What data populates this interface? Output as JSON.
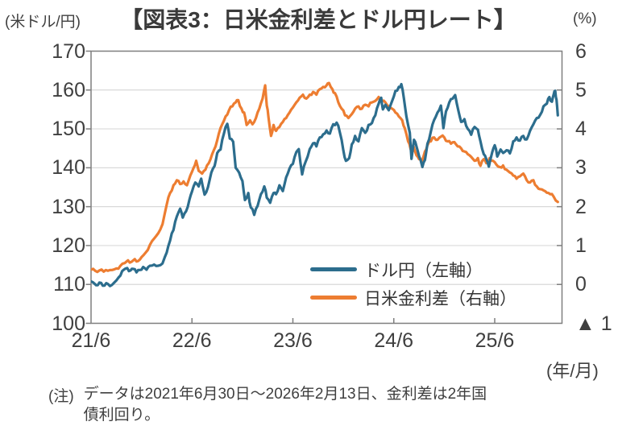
{
  "header": {
    "title": "【図表3：日米金利差とドル円レート】"
  },
  "note": {
    "prefix": "(注)",
    "line1": "データは2021年6月30日～2026年2月13日、金利差は2年国",
    "line2": "債利回り。"
  },
  "chart_data": {
    "type": "line",
    "title": "【図表3：日米金利差とドル円レート】",
    "grid": "horizontal",
    "legend_position": "inside-bottom-right",
    "colors": {
      "usdjpy": "#2c6d8d",
      "rate_diff": "#ed7d31",
      "gridline": "#d9d9d9",
      "axis": "#7f7f7f",
      "text": "#3f3f3f"
    },
    "x_axis": {
      "unit": "(年/月)",
      "ticks": [
        "21/6",
        "22/6",
        "23/6",
        "24/6",
        "25/6"
      ],
      "tick_months": [
        0,
        12,
        24,
        36,
        48
      ],
      "range_months": [
        0,
        56
      ],
      "start": "2021/6/30",
      "end": "2026/2/13"
    },
    "y_left": {
      "unit": "(米ドル/円)",
      "ticks": [
        "170",
        "160",
        "150",
        "140",
        "130",
        "120",
        "110",
        "100"
      ],
      "values": [
        170,
        160,
        150,
        140,
        130,
        120,
        110,
        100
      ],
      "range": [
        100,
        170
      ]
    },
    "y_right": {
      "unit": "(%)",
      "ticks": [
        "6",
        "5",
        "4",
        "3",
        "2",
        "1",
        "0",
        "▲ 1"
      ],
      "values": [
        6,
        5,
        4,
        3,
        2,
        1,
        0,
        -1
      ],
      "range": [
        -1,
        6
      ]
    },
    "series": [
      {
        "name": "ドル円（左軸）",
        "axis": "left",
        "color": "#2c6d8d",
        "points": [
          [
            0,
            110.8
          ],
          [
            0.4,
            110.2
          ],
          [
            0.8,
            109.8
          ],
          [
            1.2,
            110.4
          ],
          [
            1.6,
            109.7
          ],
          [
            2,
            110.1
          ],
          [
            2.5,
            109.9
          ],
          [
            3,
            111.0
          ],
          [
            3.5,
            112.3
          ],
          [
            3.9,
            113.8
          ],
          [
            4.3,
            114.2
          ],
          [
            4.7,
            113.6
          ],
          [
            5,
            114.0
          ],
          [
            5.4,
            113.1
          ],
          [
            5.8,
            113.7
          ],
          [
            6.2,
            114.5
          ],
          [
            6.6,
            113.8
          ],
          [
            7,
            114.8
          ],
          [
            7.5,
            115.1
          ],
          [
            8,
            114.8
          ],
          [
            8.5,
            115.4
          ],
          [
            9,
            118.2
          ],
          [
            9.4,
            121.3
          ],
          [
            9.8,
            124.0
          ],
          [
            10.2,
            127.5
          ],
          [
            10.6,
            129.5
          ],
          [
            10.9,
            127.2
          ],
          [
            11.3,
            128.8
          ],
          [
            11.7,
            131.8
          ],
          [
            12,
            133.9
          ],
          [
            12.4,
            136.2
          ],
          [
            12.8,
            135.2
          ],
          [
            13.1,
            137.2
          ],
          [
            13.5,
            133.1
          ],
          [
            13.9,
            135.0
          ],
          [
            14.3,
            138.8
          ],
          [
            14.7,
            140.5
          ],
          [
            15,
            143.8
          ],
          [
            15.4,
            144.7
          ],
          [
            15.8,
            148.8
          ],
          [
            16.2,
            151.3
          ],
          [
            16.5,
            147.5
          ],
          [
            16.9,
            146.7
          ],
          [
            17.2,
            140.0
          ],
          [
            17.6,
            138.8
          ],
          [
            18,
            136.6
          ],
          [
            18.3,
            131.7
          ],
          [
            18.7,
            133.5
          ],
          [
            19,
            129.8
          ],
          [
            19.4,
            127.9
          ],
          [
            19.8,
            130.2
          ],
          [
            20.2,
            133.2
          ],
          [
            20.6,
            135.2
          ],
          [
            20.9,
            132.3
          ],
          [
            21.3,
            131.0
          ],
          [
            21.7,
            133.5
          ],
          [
            22,
            133.2
          ],
          [
            22.4,
            135.5
          ],
          [
            22.8,
            134.0
          ],
          [
            23.2,
            137.5
          ],
          [
            23.6,
            139.8
          ],
          [
            24,
            141.0
          ],
          [
            24.4,
            144.0
          ],
          [
            24.7,
            144.8
          ],
          [
            25.1,
            138.3
          ],
          [
            25.5,
            141.5
          ],
          [
            26,
            144.8
          ],
          [
            26.4,
            146.3
          ],
          [
            26.8,
            145.5
          ],
          [
            27.2,
            147.8
          ],
          [
            27.6,
            148.6
          ],
          [
            28,
            149.6
          ],
          [
            28.4,
            148.8
          ],
          [
            28.8,
            151.2
          ],
          [
            29.2,
            151.6
          ],
          [
            29.6,
            149.0
          ],
          [
            30,
            144.5
          ],
          [
            30.3,
            141.8
          ],
          [
            30.7,
            142.5
          ],
          [
            31,
            146.0
          ],
          [
            31.4,
            148.2
          ],
          [
            31.8,
            146.8
          ],
          [
            32.2,
            150.2
          ],
          [
            32.6,
            149.0
          ],
          [
            33,
            151.0
          ],
          [
            33.4,
            151.5
          ],
          [
            33.8,
            153.5
          ],
          [
            34.2,
            156.5
          ],
          [
            34.5,
            158.0
          ],
          [
            34.7,
            155.0
          ],
          [
            35,
            156.2
          ],
          [
            35.4,
            154.8
          ],
          [
            35.8,
            157.2
          ],
          [
            36.2,
            159.8
          ],
          [
            36.6,
            160.8
          ],
          [
            36.9,
            161.5
          ],
          [
            37.2,
            157.8
          ],
          [
            37.5,
            153.2
          ],
          [
            37.9,
            149.0
          ],
          [
            38.1,
            142.3
          ],
          [
            38.4,
            147.2
          ],
          [
            38.7,
            145.5
          ],
          [
            39,
            143.0
          ],
          [
            39.4,
            140.2
          ],
          [
            39.7,
            142.0
          ],
          [
            40,
            146.2
          ],
          [
            40.4,
            149.3
          ],
          [
            40.8,
            152.3
          ],
          [
            41.2,
            154.2
          ],
          [
            41.6,
            156.0
          ],
          [
            41.9,
            150.2
          ],
          [
            42.2,
            154.5
          ],
          [
            42.6,
            156.8
          ],
          [
            43,
            157.8
          ],
          [
            43.3,
            158.7
          ],
          [
            43.7,
            154.5
          ],
          [
            44,
            151.8
          ],
          [
            44.4,
            152.5
          ],
          [
            44.8,
            150.0
          ],
          [
            45.2,
            148.5
          ],
          [
            45.6,
            150.5
          ],
          [
            46,
            149.8
          ],
          [
            46.3,
            146.8
          ],
          [
            46.7,
            143.5
          ],
          [
            47,
            142.2
          ],
          [
            47.3,
            140.3
          ],
          [
            47.7,
            144.0
          ],
          [
            48,
            145.8
          ],
          [
            48.3,
            142.9
          ],
          [
            48.7,
            144.7
          ],
          [
            49,
            143.8
          ],
          [
            49.4,
            144.5
          ],
          [
            49.8,
            143.7
          ],
          [
            50.2,
            146.8
          ],
          [
            50.6,
            147.8
          ],
          [
            51,
            147.0
          ],
          [
            51.4,
            148.2
          ],
          [
            51.8,
            147.3
          ],
          [
            52.2,
            149.5
          ],
          [
            52.6,
            151.2
          ],
          [
            53,
            152.8
          ],
          [
            53.4,
            153.6
          ],
          [
            53.8,
            155.8
          ],
          [
            54.2,
            156.5
          ],
          [
            54.5,
            158.2
          ],
          [
            54.8,
            157.0
          ],
          [
            55,
            158.8
          ],
          [
            55.2,
            159.8
          ],
          [
            55.35,
            157.5
          ],
          [
            55.5,
            153.5
          ]
        ]
      },
      {
        "name": "日米金利差（右軸）",
        "axis": "right",
        "color": "#ed7d31",
        "points": [
          [
            0,
            0.38
          ],
          [
            0.5,
            0.35
          ],
          [
            1,
            0.36
          ],
          [
            1.5,
            0.33
          ],
          [
            2,
            0.35
          ],
          [
            2.5,
            0.37
          ],
          [
            3,
            0.41
          ],
          [
            3.5,
            0.48
          ],
          [
            4,
            0.55
          ],
          [
            4.4,
            0.62
          ],
          [
            4.8,
            0.58
          ],
          [
            5.2,
            0.65
          ],
          [
            5.6,
            0.6
          ],
          [
            6,
            0.7
          ],
          [
            6.5,
            0.82
          ],
          [
            7,
            1.02
          ],
          [
            7.5,
            1.18
          ],
          [
            8,
            1.32
          ],
          [
            8.5,
            1.55
          ],
          [
            9,
            2.05
          ],
          [
            9.4,
            2.35
          ],
          [
            9.8,
            2.55
          ],
          [
            10.2,
            2.68
          ],
          [
            10.6,
            2.58
          ],
          [
            11,
            2.65
          ],
          [
            11.4,
            2.55
          ],
          [
            11.8,
            2.8
          ],
          [
            12.2,
            3.0
          ],
          [
            12.5,
            3.18
          ],
          [
            12.8,
            2.92
          ],
          [
            13.2,
            2.85
          ],
          [
            13.6,
            2.95
          ],
          [
            14,
            3.12
          ],
          [
            14.4,
            3.35
          ],
          [
            14.8,
            3.55
          ],
          [
            15.2,
            3.88
          ],
          [
            15.6,
            4.12
          ],
          [
            16,
            4.32
          ],
          [
            16.4,
            4.48
          ],
          [
            16.8,
            4.58
          ],
          [
            17.2,
            4.68
          ],
          [
            17.5,
            4.74
          ],
          [
            17.9,
            4.52
          ],
          [
            18.2,
            4.42
          ],
          [
            18.5,
            4.1
          ],
          [
            18.9,
            4.22
          ],
          [
            19.2,
            4.12
          ],
          [
            19.6,
            4.28
          ],
          [
            20,
            4.52
          ],
          [
            20.4,
            4.78
          ],
          [
            20.7,
            5.12
          ],
          [
            20.9,
            4.6
          ],
          [
            21.1,
            4.3
          ],
          [
            21.4,
            3.82
          ],
          [
            21.7,
            4.1
          ],
          [
            22,
            3.95
          ],
          [
            22.4,
            4.05
          ],
          [
            22.8,
            4.18
          ],
          [
            23.2,
            4.28
          ],
          [
            23.6,
            4.42
          ],
          [
            24,
            4.55
          ],
          [
            24.4,
            4.68
          ],
          [
            24.8,
            4.8
          ],
          [
            25.2,
            4.88
          ],
          [
            25.6,
            4.78
          ],
          [
            26,
            4.88
          ],
          [
            26.4,
            4.95
          ],
          [
            26.8,
            4.88
          ],
          [
            27.2,
            5.02
          ],
          [
            27.6,
            5.08
          ],
          [
            28,
            5.12
          ],
          [
            28.3,
            5.18
          ],
          [
            28.7,
            5.02
          ],
          [
            29,
            4.92
          ],
          [
            29.4,
            4.68
          ],
          [
            29.8,
            4.52
          ],
          [
            30.2,
            4.35
          ],
          [
            30.6,
            4.28
          ],
          [
            31,
            4.38
          ],
          [
            31.4,
            4.52
          ],
          [
            31.8,
            4.58
          ],
          [
            32.2,
            4.52
          ],
          [
            32.6,
            4.62
          ],
          [
            33,
            4.58
          ],
          [
            33.4,
            4.68
          ],
          [
            33.8,
            4.72
          ],
          [
            34.2,
            4.82
          ],
          [
            34.6,
            4.72
          ],
          [
            35,
            4.68
          ],
          [
            35.4,
            4.58
          ],
          [
            35.8,
            4.52
          ],
          [
            36.2,
            4.42
          ],
          [
            36.6,
            4.32
          ],
          [
            37,
            4.22
          ],
          [
            37.3,
            4.02
          ],
          [
            37.7,
            3.68
          ],
          [
            38,
            3.48
          ],
          [
            38.3,
            3.58
          ],
          [
            38.7,
            3.32
          ],
          [
            39,
            3.22
          ],
          [
            39.3,
            3.15
          ],
          [
            39.7,
            3.42
          ],
          [
            40,
            3.58
          ],
          [
            40.4,
            3.68
          ],
          [
            40.8,
            3.78
          ],
          [
            41.2,
            3.72
          ],
          [
            41.6,
            3.8
          ],
          [
            42,
            3.78
          ],
          [
            42.4,
            3.68
          ],
          [
            42.8,
            3.62
          ],
          [
            43.2,
            3.66
          ],
          [
            43.6,
            3.55
          ],
          [
            44,
            3.5
          ],
          [
            44.4,
            3.42
          ],
          [
            44.8,
            3.35
          ],
          [
            45.2,
            3.28
          ],
          [
            45.6,
            3.18
          ],
          [
            46,
            3.25
          ],
          [
            46.3,
            3.05
          ],
          [
            46.7,
            3.22
          ],
          [
            47,
            3.12
          ],
          [
            47.4,
            3.25
          ],
          [
            47.8,
            3.18
          ],
          [
            48.2,
            3.08
          ],
          [
            48.6,
            3.02
          ],
          [
            49,
            3.06
          ],
          [
            49.4,
            2.95
          ],
          [
            49.8,
            2.88
          ],
          [
            50.2,
            2.8
          ],
          [
            50.6,
            2.72
          ],
          [
            51,
            2.78
          ],
          [
            51.4,
            2.85
          ],
          [
            51.8,
            2.68
          ],
          [
            52.2,
            2.62
          ],
          [
            52.6,
            2.68
          ],
          [
            53,
            2.52
          ],
          [
            53.4,
            2.45
          ],
          [
            53.8,
            2.42
          ],
          [
            54.2,
            2.36
          ],
          [
            54.6,
            2.32
          ],
          [
            55,
            2.26
          ],
          [
            55.5,
            2.12
          ]
        ]
      }
    ]
  }
}
